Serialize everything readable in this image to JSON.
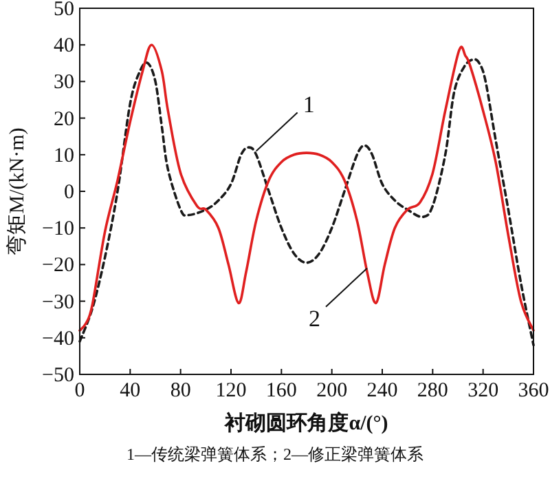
{
  "chart_data": {
    "type": "line",
    "xlabel": "衬砌圆环角度α/(°)",
    "ylabel": "弯矩M/(kN·m)",
    "annotations": [
      {
        "text": "1",
        "x": 140,
        "y": 11
      },
      {
        "text": "2",
        "x": 228,
        "y": -21
      },
      "1—传统梁弹簧体系；2—修正梁弹簧体系"
    ],
    "series": [
      {
        "color": "#1a1a1a",
        "line_style": "dashed",
        "x": [
          0,
          10,
          20,
          30,
          40,
          48,
          54,
          60,
          65,
          70,
          80,
          86,
          100,
          110,
          120,
          128,
          134,
          140,
          150,
          160,
          170,
          180,
          190,
          200,
          210,
          220,
          226,
          232,
          240,
          250,
          260,
          272,
          280,
          290,
          297,
          305,
          312,
          317,
          322,
          330,
          340,
          350,
          360
        ],
        "values": [
          -41,
          -32,
          -18,
          0,
          24,
          33,
          35,
          30,
          18,
          6,
          -5,
          -6.5,
          -5,
          -2.5,
          2,
          10,
          12,
          10,
          0,
          -10,
          -17,
          -19.5,
          -17,
          -10,
          0,
          10,
          12.5,
          10,
          2,
          -2.5,
          -5,
          -7,
          -4,
          10,
          27,
          34,
          36,
          35,
          30,
          14,
          -5,
          -25,
          -42
        ]
      },
      {
        "color": "#e02020",
        "line_style": "solid",
        "x": [
          0,
          5,
          10,
          20,
          30,
          40,
          50,
          57,
          65,
          70,
          80,
          93,
          100,
          110,
          118,
          126,
          132,
          140,
          150,
          160,
          170,
          180,
          190,
          200,
          210,
          220,
          228,
          235,
          242,
          250,
          260,
          270,
          280,
          290,
          301,
          306,
          310,
          320,
          330,
          340,
          350,
          360
        ],
        "values": [
          -38,
          -36,
          -31,
          -11,
          3,
          19,
          33,
          40,
          33,
          22,
          5,
          -4,
          -5,
          -10,
          -20,
          -30.5,
          -22,
          -8,
          3,
          8,
          10,
          10.5,
          10,
          8,
          3,
          -8,
          -22,
          -30.5,
          -20,
          -10,
          -5,
          -3,
          5,
          22,
          38.5,
          37,
          34,
          22,
          8,
          -12,
          -30,
          -38
        ]
      }
    ],
    "xlim": [
      0,
      360
    ],
    "xticks": [
      0,
      40,
      80,
      120,
      160,
      200,
      240,
      280,
      320,
      360
    ],
    "ylim": [
      -50,
      50
    ],
    "yticks": [
      -50,
      -40,
      -30,
      -20,
      -10,
      0,
      10,
      20,
      30,
      40,
      50
    ],
    "grid": false
  }
}
